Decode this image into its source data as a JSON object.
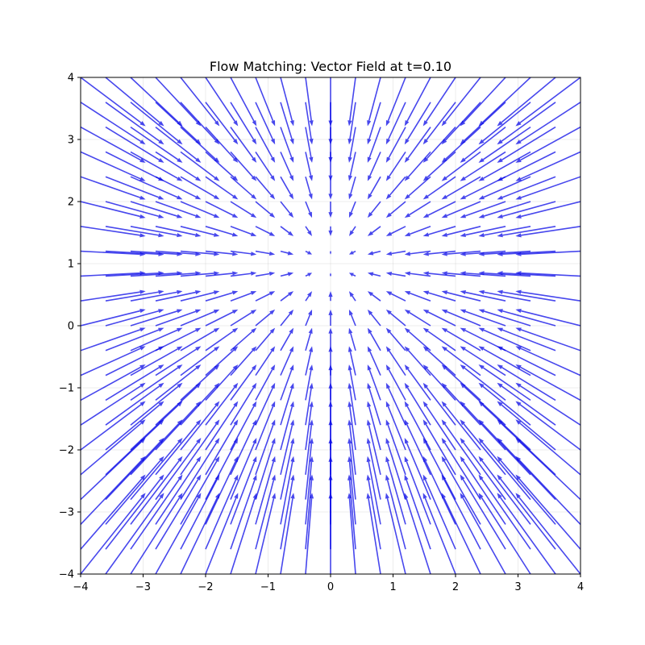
{
  "chart_data": {
    "type": "quiver",
    "title": "Flow Matching: Vector Field at t=0.10",
    "xlabel": "",
    "ylabel": "",
    "xlim": [
      -4,
      4
    ],
    "ylim": [
      -4,
      4
    ],
    "xticks": [
      "−4",
      "−3",
      "−2",
      "−1",
      "0",
      "1",
      "2",
      "3",
      "4"
    ],
    "yticks": [
      "−4",
      "−3",
      "−2",
      "−1",
      "0",
      "1",
      "2",
      "3",
      "4"
    ],
    "grid": true,
    "arrow_color": "#0000e6",
    "grid_spacing": 0.4,
    "sink_center": [
      0,
      1
    ],
    "field_description": "Converging vector field; arrows point toward a sink near (0, 1)"
  }
}
